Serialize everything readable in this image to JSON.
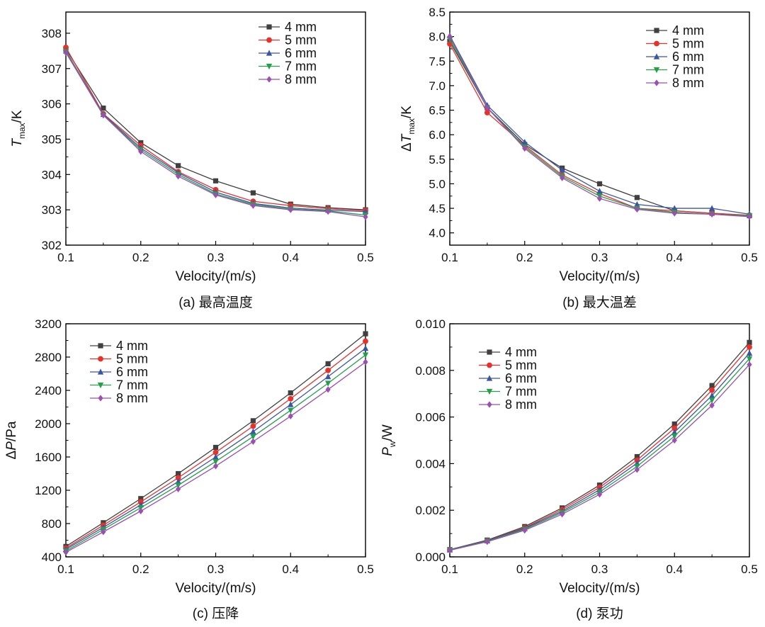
{
  "chart_data": [
    {
      "type": "line",
      "caption": "(a) 最高温度",
      "ylabel": {
        "base": "T",
        "sub": "max",
        "rest": "/K",
        "prefix": ""
      },
      "xlabel": "Velocity/(m/s)",
      "xlim": [
        0.1,
        0.5
      ],
      "ylim": [
        302,
        308.6
      ],
      "xticks": [
        0.1,
        0.2,
        0.3,
        0.4,
        0.5
      ],
      "xtick_labels": [
        "0.1",
        "0.2",
        "0.3",
        "0.4",
        "0.5"
      ],
      "yticks": [
        302,
        303,
        304,
        305,
        306,
        307,
        308
      ],
      "ytick_labels": [
        "302",
        "303",
        "304",
        "305",
        "306",
        "307",
        "308"
      ],
      "legend_position": "top-right",
      "x": [
        0.1,
        0.15,
        0.2,
        0.25,
        0.3,
        0.35,
        0.4,
        0.45,
        0.5
      ],
      "series": [
        {
          "name": "4 mm",
          "color": "#404040",
          "marker": "square",
          "values": [
            307.55,
            305.88,
            304.9,
            304.25,
            303.82,
            303.48,
            303.16,
            303.06,
            303.0
          ]
        },
        {
          "name": "5 mm",
          "color": "#e8312b",
          "marker": "circle",
          "values": [
            307.6,
            305.72,
            304.82,
            304.08,
            303.57,
            303.24,
            303.12,
            303.03,
            302.98
          ]
        },
        {
          "name": "6 mm",
          "color": "#3a55a4",
          "marker": "triangle-up",
          "values": [
            307.5,
            305.7,
            304.75,
            304.05,
            303.5,
            303.18,
            303.05,
            302.99,
            302.95
          ]
        },
        {
          "name": "7 mm",
          "color": "#23a04a",
          "marker": "triangle-down",
          "values": [
            307.48,
            305.68,
            304.7,
            304.0,
            303.45,
            303.15,
            303.02,
            302.97,
            302.85
          ]
        },
        {
          "name": "8 mm",
          "color": "#9b4fb2",
          "marker": "diamond",
          "values": [
            307.45,
            305.68,
            304.65,
            303.95,
            303.42,
            303.12,
            303.0,
            302.95,
            302.8
          ]
        }
      ]
    },
    {
      "type": "line",
      "caption": "(b) 最大温差",
      "ylabel": {
        "base": "T",
        "sub": "max",
        "rest": "/K",
        "prefix": "Δ"
      },
      "xlabel": "Velocity/(m/s)",
      "xlim": [
        0.1,
        0.5
      ],
      "ylim": [
        3.75,
        8.5
      ],
      "xticks": [
        0.1,
        0.2,
        0.3,
        0.4,
        0.5
      ],
      "xtick_labels": [
        "0.1",
        "0.2",
        "0.3",
        "0.4",
        "0.5"
      ],
      "yticks": [
        4.0,
        4.5,
        5.0,
        5.5,
        6.0,
        6.5,
        7.0,
        7.5,
        8.0,
        8.5
      ],
      "ytick_labels": [
        "4.0",
        "4.5",
        "5.0",
        "5.5",
        "6.0",
        "6.5",
        "7.0",
        "7.5",
        "8.0",
        "8.5"
      ],
      "legend_position": "top-right",
      "x": [
        0.1,
        0.15,
        0.2,
        0.25,
        0.3,
        0.35,
        0.4,
        0.45,
        0.5
      ],
      "series": [
        {
          "name": "4 mm",
          "color": "#404040",
          "marker": "square",
          "values": [
            7.9,
            6.55,
            5.8,
            5.32,
            5.0,
            4.72,
            4.45,
            4.4,
            4.35
          ]
        },
        {
          "name": "5 mm",
          "color": "#e8312b",
          "marker": "circle",
          "values": [
            7.85,
            6.45,
            5.78,
            5.18,
            4.8,
            4.5,
            4.45,
            4.4,
            4.36
          ]
        },
        {
          "name": "6 mm",
          "color": "#3a55a4",
          "marker": "triangle-up",
          "values": [
            8.02,
            6.6,
            5.85,
            5.28,
            4.85,
            4.58,
            4.5,
            4.5,
            4.38
          ]
        },
        {
          "name": "7 mm",
          "color": "#23a04a",
          "marker": "triangle-down",
          "values": [
            7.95,
            6.55,
            5.75,
            5.15,
            4.75,
            4.5,
            4.42,
            4.38,
            4.35
          ]
        },
        {
          "name": "8 mm",
          "color": "#9b4fb2",
          "marker": "diamond",
          "values": [
            8.0,
            6.55,
            5.72,
            5.12,
            4.7,
            4.48,
            4.4,
            4.38,
            4.33
          ]
        }
      ]
    },
    {
      "type": "line",
      "caption": "(c) 压降",
      "ylabel": {
        "base": "P",
        "sub": "",
        "rest": "/Pa",
        "prefix": "Δ"
      },
      "xlabel": "Velocity/(m/s)",
      "xlim": [
        0.1,
        0.5
      ],
      "ylim": [
        400,
        3200
      ],
      "xticks": [
        0.1,
        0.2,
        0.3,
        0.4,
        0.5
      ],
      "xtick_labels": [
        "0.1",
        "0.2",
        "0.3",
        "0.4",
        "0.5"
      ],
      "yticks": [
        400,
        800,
        1200,
        1600,
        2000,
        2400,
        2800,
        3200
      ],
      "ytick_labels": [
        "400",
        "800",
        "1200",
        "1600",
        "2000",
        "2400",
        "2800",
        "3200"
      ],
      "legend_position": "top-left",
      "x": [
        0.1,
        0.15,
        0.2,
        0.25,
        0.3,
        0.35,
        0.4,
        0.45,
        0.5
      ],
      "series": [
        {
          "name": "4 mm",
          "color": "#404040",
          "marker": "square",
          "values": [
            525,
            810,
            1100,
            1400,
            1715,
            2035,
            2370,
            2720,
            3080
          ]
        },
        {
          "name": "5 mm",
          "color": "#e8312b",
          "marker": "circle",
          "values": [
            505,
            780,
            1060,
            1350,
            1655,
            1970,
            2300,
            2640,
            2990
          ]
        },
        {
          "name": "6 mm",
          "color": "#3a55a4",
          "marker": "triangle-up",
          "values": [
            490,
            755,
            1025,
            1305,
            1600,
            1905,
            2230,
            2565,
            2905
          ]
        },
        {
          "name": "7 mm",
          "color": "#23a04a",
          "marker": "triangle-down",
          "values": [
            470,
            730,
            990,
            1260,
            1545,
            1845,
            2160,
            2485,
            2825
          ]
        },
        {
          "name": "8 mm",
          "color": "#9b4fb2",
          "marker": "diamond",
          "values": [
            455,
            700,
            950,
            1215,
            1490,
            1785,
            2090,
            2410,
            2740
          ]
        }
      ]
    },
    {
      "type": "line",
      "caption": "(d) 泵功",
      "ylabel": {
        "base": "P",
        "sub": "w",
        "rest": "/W",
        "prefix": ""
      },
      "xlabel": "Velocity/(m/s)",
      "xlim": [
        0.1,
        0.5
      ],
      "ylim": [
        0,
        0.01
      ],
      "xticks": [
        0.1,
        0.2,
        0.3,
        0.4,
        0.5
      ],
      "xtick_labels": [
        "0.1",
        "0.2",
        "0.3",
        "0.4",
        "0.5"
      ],
      "yticks": [
        0,
        0.002,
        0.004,
        0.006,
        0.008,
        0.01
      ],
      "ytick_labels": [
        "0.000",
        "0.002",
        "0.004",
        "0.006",
        "0.008",
        "0.010"
      ],
      "legend_position": "top-left",
      "x": [
        0.1,
        0.15,
        0.2,
        0.25,
        0.3,
        0.35,
        0.4,
        0.45,
        0.5
      ],
      "series": [
        {
          "name": "4 mm",
          "color": "#404040",
          "marker": "square",
          "values": [
            0.00031,
            0.00072,
            0.0013,
            0.0021,
            0.00308,
            0.0043,
            0.0057,
            0.00735,
            0.0092
          ]
        },
        {
          "name": "5 mm",
          "color": "#e8312b",
          "marker": "circle",
          "values": [
            0.0003,
            0.0007,
            0.00125,
            0.00203,
            0.00298,
            0.00415,
            0.00552,
            0.00715,
            0.009
          ]
        },
        {
          "name": "6 mm",
          "color": "#3a55a4",
          "marker": "triangle-up",
          "values": [
            0.0003,
            0.00069,
            0.00122,
            0.00196,
            0.00288,
            0.00402,
            0.00535,
            0.00692,
            0.00874
          ]
        },
        {
          "name": "7 mm",
          "color": "#23a04a",
          "marker": "triangle-down",
          "values": [
            0.00029,
            0.00067,
            0.00118,
            0.0019,
            0.00278,
            0.00388,
            0.00518,
            0.00672,
            0.0085
          ]
        },
        {
          "name": "8 mm",
          "color": "#9b4fb2",
          "marker": "diamond",
          "values": [
            0.00028,
            0.00065,
            0.00114,
            0.00183,
            0.00268,
            0.00374,
            0.005,
            0.0065,
            0.00825
          ]
        }
      ]
    }
  ]
}
